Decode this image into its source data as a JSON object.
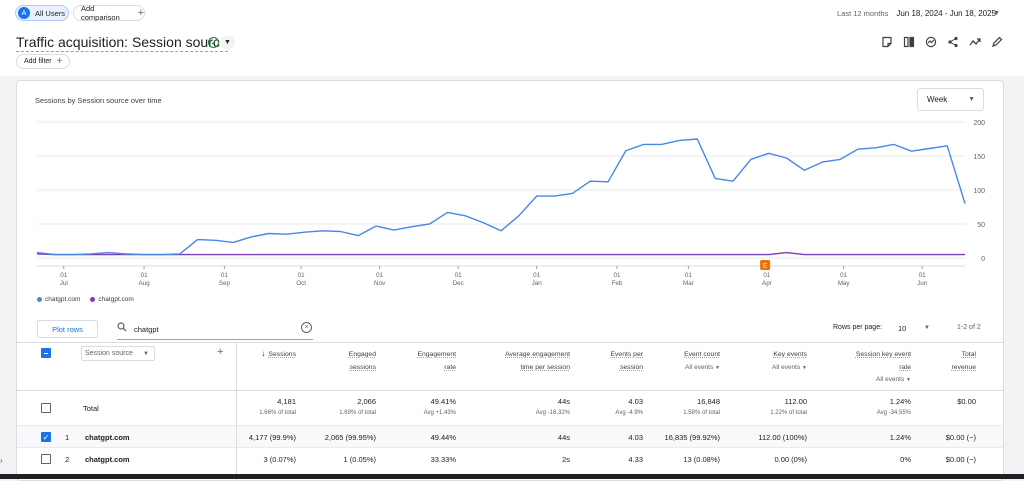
{
  "topbar": {
    "segment": {
      "avatar": "A",
      "label": "All Users"
    },
    "add_comparison": "Add comparison",
    "date_range": {
      "label": "Last 12 months",
      "dates": "Jun 18, 2024 - Jun 18, 2025"
    }
  },
  "report": {
    "title": "Traffic acquisition: Session source",
    "add_filter": "Add filter",
    "tool_icons": [
      "notes-icon",
      "compare-icon",
      "insights-icon",
      "share-icon",
      "trend-icon",
      "edit-icon"
    ]
  },
  "chart": {
    "title": "Sessions by Session source over time",
    "granularity": "Week",
    "annotation_badge": "E",
    "legend": [
      {
        "label": "chatgpt.com",
        "color": "#4a86e8"
      },
      {
        "label": "chatgpt.com",
        "color": "#7b3fb8"
      }
    ]
  },
  "chart_data": {
    "type": "line",
    "title": "Sessions by Session source over time",
    "y_ticks": [
      0,
      50,
      100,
      150,
      200
    ],
    "ylim": [
      0,
      200
    ],
    "x_ticks": [
      {
        "day": "01",
        "month": "Jul",
        "week": 1.5
      },
      {
        "day": "01",
        "month": "Aug",
        "week": 6
      },
      {
        "day": "01",
        "month": "Sep",
        "week": 10.5
      },
      {
        "day": "01",
        "month": "Oct",
        "week": 14.8
      },
      {
        "day": "01",
        "month": "Nov",
        "week": 19.2
      },
      {
        "day": "01",
        "month": "Dec",
        "week": 23.6
      },
      {
        "day": "01",
        "month": "Jan",
        "week": 28
      },
      {
        "day": "01",
        "month": "Feb",
        "week": 32.5
      },
      {
        "day": "01",
        "month": "Mar",
        "week": 36.5
      },
      {
        "day": "01",
        "month": "Apr",
        "week": 40.9
      },
      {
        "day": "01",
        "month": "May",
        "week": 45.2
      },
      {
        "day": "01",
        "month": "Jun",
        "week": 49.6
      }
    ],
    "annotation_week": 40.8,
    "series": [
      {
        "name": "chatgpt.com",
        "color": "#4a86e8",
        "values": [
          8,
          5,
          5,
          6,
          8,
          6,
          5,
          5,
          6,
          27,
          26,
          23,
          31,
          36,
          35,
          38,
          40,
          39,
          33,
          47,
          41,
          46,
          50,
          67,
          62,
          52,
          40,
          62,
          91,
          91,
          95,
          113,
          112,
          158,
          167,
          167,
          173,
          175,
          117,
          113,
          145,
          154,
          147,
          129,
          141,
          145,
          160,
          162,
          167,
          157,
          161,
          165,
          80
        ]
      },
      {
        "name": "chatgpt.com",
        "color": "#7b3fb8",
        "values": [
          6,
          5,
          5,
          5,
          5,
          5,
          5,
          5,
          5,
          5,
          5,
          5,
          5,
          5,
          5,
          5,
          5,
          5,
          5,
          5,
          5,
          5,
          5,
          5,
          5,
          5,
          5,
          5,
          5,
          5,
          5,
          5,
          5,
          5,
          5,
          5,
          5,
          5,
          5,
          5,
          5,
          5,
          8,
          5,
          5,
          5,
          5,
          5,
          5,
          5,
          5,
          5,
          5
        ]
      }
    ]
  },
  "table": {
    "plot_rows": "Plot rows",
    "search_value": "chatgpt",
    "rows_per_page_label": "Rows per page:",
    "rows_per_page": "10",
    "pagination": "1-2 of 2",
    "dimension": "Session source",
    "columns": [
      {
        "l1": "Sessions",
        "l2": "",
        "sub": ""
      },
      {
        "l1": "Engaged",
        "l2": "sessions",
        "sub": ""
      },
      {
        "l1": "Engagement",
        "l2": "rate",
        "sub": ""
      },
      {
        "l1": "Average engagement",
        "l2": "time per session",
        "sub": ""
      },
      {
        "l1": "Events per",
        "l2": "session",
        "sub": ""
      },
      {
        "l1": "Event count",
        "l2": "",
        "sub": "All events"
      },
      {
        "l1": "Key events",
        "l2": "",
        "sub": "All events"
      },
      {
        "l1": "Session key event",
        "l2": "rate",
        "sub": "All events"
      },
      {
        "l1": "Total",
        "l2": "revenue",
        "sub": ""
      }
    ],
    "totals": {
      "label": "Total",
      "values": [
        "4,181",
        "2,066",
        "49.41%",
        "44s",
        "4.03",
        "16,848",
        "112.00",
        "1.24%",
        "$0.00"
      ],
      "subs": [
        "1.66% of total",
        "1.69% of total",
        "Avg +1.43%",
        "Avg -16.32%",
        "Avg -4.9%",
        "1.58% of total",
        "1.22% of total",
        "Avg -34.55%",
        ""
      ]
    },
    "rows": [
      {
        "index": "1",
        "source": "chatgpt.com",
        "checked": true,
        "values": [
          "4,177 (99.9%)",
          "2,065 (99.95%)",
          "49.44%",
          "44s",
          "4.03",
          "16,835 (99.92%)",
          "112.00 (100%)",
          "1.24%",
          "$0.00 (−)"
        ]
      },
      {
        "index": "2",
        "source": "chatgpt.com",
        "checked": false,
        "values": [
          "3 (0.07%)",
          "1 (0.05%)",
          "33.33%",
          "2s",
          "4.33",
          "13 (0.08%)",
          "0.00 (0%)",
          "0%",
          "$0.00 (−)"
        ]
      }
    ]
  }
}
